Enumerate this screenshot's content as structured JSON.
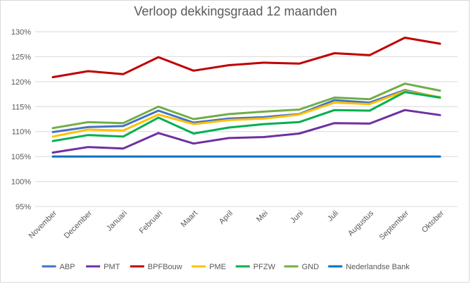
{
  "chart_data": {
    "type": "line",
    "title": "Verloop dekkingsgraad 12 maanden",
    "xlabel": "",
    "ylabel": "",
    "categories": [
      "November",
      "December",
      "Januari",
      "Februari",
      "Maart",
      "April",
      "Mei",
      "Juni",
      "Juli",
      "Augustus",
      "September",
      "Oktober"
    ],
    "ylim": [
      95,
      130
    ],
    "yticks": [
      "95%",
      "100%",
      "105%",
      "110%",
      "115%",
      "120%",
      "125%",
      "130%"
    ],
    "grid": true,
    "legend_position": "bottom",
    "series": [
      {
        "name": "ABP",
        "color": "#4472c4",
        "values": [
          109.9,
          110.9,
          111.1,
          114.2,
          111.8,
          112.6,
          112.9,
          113.5,
          116.3,
          115.8,
          118.3,
          116.8
        ]
      },
      {
        "name": "PMT",
        "color": "#7030a0",
        "values": [
          105.8,
          106.9,
          106.6,
          109.7,
          107.6,
          108.7,
          108.9,
          109.6,
          111.7,
          111.6,
          114.3,
          113.3
        ]
      },
      {
        "name": "BPFBouw",
        "color": "#c00000",
        "values": [
          120.9,
          122.1,
          121.5,
          124.9,
          122.2,
          123.3,
          123.8,
          123.6,
          125.7,
          125.3,
          128.8,
          127.6
        ]
      },
      {
        "name": "PME",
        "color": "#ffc000",
        "values": [
          109.0,
          110.4,
          110.2,
          113.4,
          111.5,
          112.3,
          112.6,
          113.4,
          115.8,
          115.5,
          118.1,
          116.9
        ]
      },
      {
        "name": "PFZW",
        "color": "#00b050",
        "values": [
          108.1,
          109.3,
          109.0,
          112.8,
          109.6,
          110.8,
          111.5,
          111.9,
          114.3,
          114.2,
          117.9,
          116.8
        ]
      },
      {
        "name": "GND",
        "color": "#70ad47",
        "values": [
          110.7,
          111.9,
          111.7,
          115.0,
          112.5,
          113.5,
          114.0,
          114.4,
          116.8,
          116.5,
          119.6,
          118.2
        ]
      },
      {
        "name": "Nederlandse Bank",
        "color": "#0070c0",
        "values": [
          105.0,
          105.0,
          105.0,
          105.0,
          105.0,
          105.0,
          105.0,
          105.0,
          105.0,
          105.0,
          105.0,
          105.0
        ]
      }
    ]
  }
}
